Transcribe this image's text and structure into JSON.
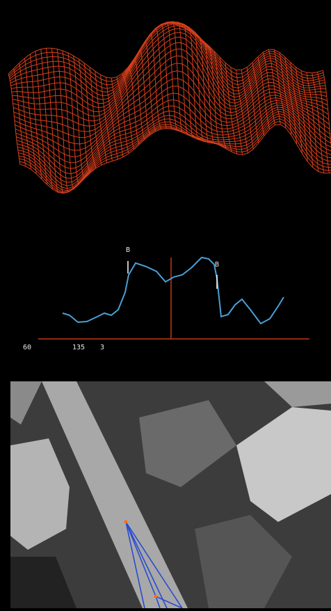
{
  "profile": {
    "markers": [
      "B",
      "B"
    ],
    "axis_labels": [
      "60",
      "135",
      "3"
    ]
  }
}
